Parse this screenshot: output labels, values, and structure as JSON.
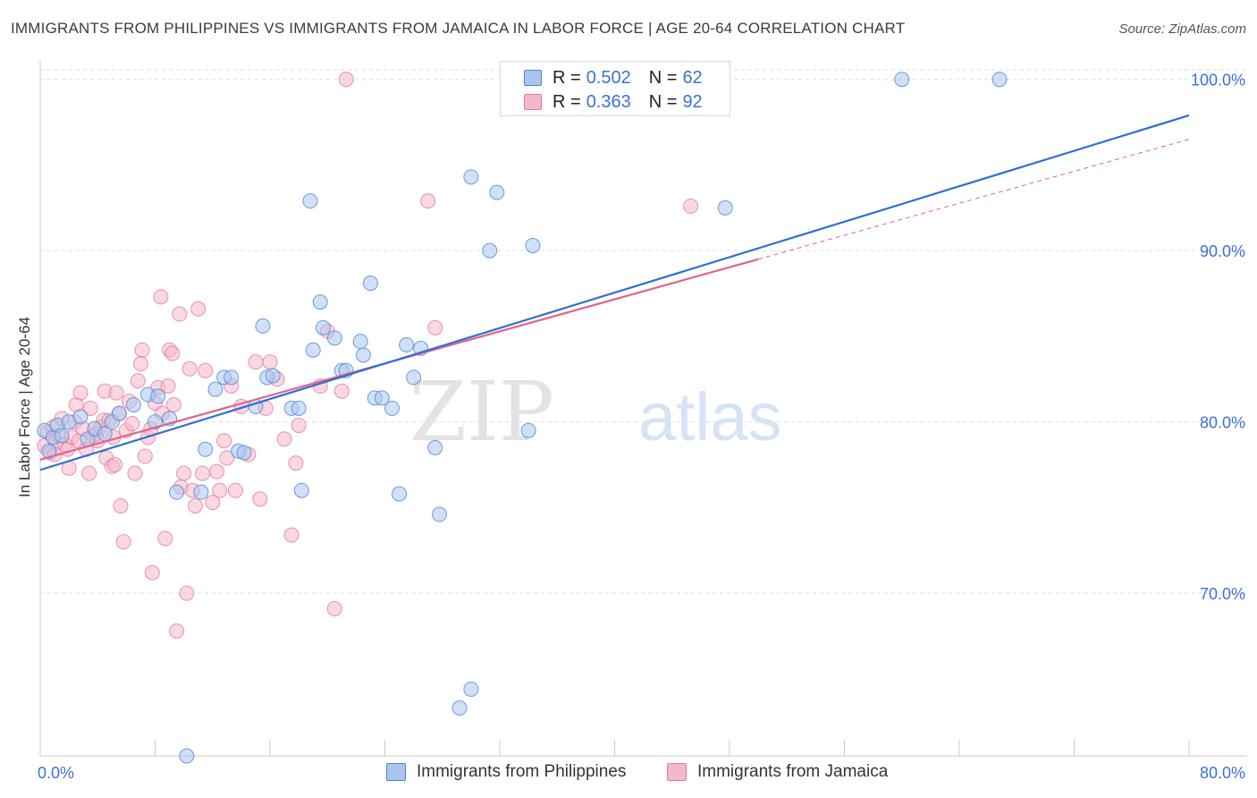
{
  "title": "IMMIGRANTS FROM PHILIPPINES VS IMMIGRANTS FROM JAMAICA IN LABOR FORCE | AGE 20-64 CORRELATION CHART",
  "source": "Source: ZipAtlas.com",
  "watermark": {
    "zip": "ZIP",
    "atlas": "atlas"
  },
  "legend": {
    "r_label": "R =",
    "n_label": "N =",
    "philippines": {
      "r": "0.502",
      "n": "62"
    },
    "jamaica": {
      "r": "0.363",
      "n": "92"
    }
  },
  "colors": {
    "philippines_fill": "#a9c6ee",
    "philippines_stroke": "#4a86d8",
    "philippines_line": "#2f6fd0",
    "jamaica_fill": "#f5b8cb",
    "jamaica_stroke": "#e27a9c",
    "jamaica_line": "#e0648e",
    "tick_label": "#3a72d8",
    "grid": "#dddddd"
  },
  "chart_data": {
    "type": "scatter",
    "title": "IMMIGRANTS FROM PHILIPPINES VS IMMIGRANTS FROM JAMAICA IN LABOR FORCE | AGE 20-64 CORRELATION CHART",
    "xlabel": "",
    "ylabel": "In Labor Force | Age 20-64",
    "xlim": [
      0,
      80
    ],
    "ylim": [
      60.5,
      101.5
    ],
    "x_tick_labels": [
      "0.0%",
      "80.0%"
    ],
    "y_ticks": [
      70,
      80,
      90,
      100
    ],
    "y_tick_labels": [
      "70.0%",
      "80.0%",
      "90.0%",
      "100.0%"
    ],
    "grid": true,
    "legend_position": "top-center",
    "series": [
      {
        "name": "Immigrants from Philippines",
        "r": 0.502,
        "n": 62,
        "trend": {
          "x": [
            0,
            80
          ],
          "y": [
            77.2,
            97.9
          ]
        },
        "points": [
          [
            0.3,
            79.5
          ],
          [
            0.6,
            78.3
          ],
          [
            0.9,
            79.1
          ],
          [
            1.2,
            79.8
          ],
          [
            1.5,
            79.2
          ],
          [
            2.0,
            80.0
          ],
          [
            2.8,
            80.3
          ],
          [
            3.3,
            79.0
          ],
          [
            3.8,
            79.6
          ],
          [
            4.5,
            79.3
          ],
          [
            5.0,
            80.0
          ],
          [
            5.5,
            80.5
          ],
          [
            6.5,
            81.0
          ],
          [
            7.5,
            81.6
          ],
          [
            8.0,
            80.0
          ],
          [
            9.0,
            80.2
          ],
          [
            9.5,
            75.9
          ],
          [
            10.2,
            60.5
          ],
          [
            11.2,
            75.9
          ],
          [
            11.5,
            78.4
          ],
          [
            12.2,
            81.9
          ],
          [
            12.8,
            82.6
          ],
          [
            13.3,
            82.6
          ],
          [
            13.8,
            78.3
          ],
          [
            14.2,
            78.2
          ],
          [
            15.0,
            80.9
          ],
          [
            15.5,
            85.6
          ],
          [
            15.8,
            82.6
          ],
          [
            16.2,
            82.7
          ],
          [
            17.5,
            80.8
          ],
          [
            18.0,
            80.8
          ],
          [
            18.8,
            92.9
          ],
          [
            18.2,
            76.0
          ],
          [
            19.5,
            87.0
          ],
          [
            19.7,
            85.5
          ],
          [
            19.0,
            84.2
          ],
          [
            20.5,
            84.9
          ],
          [
            21.0,
            83.0
          ],
          [
            21.3,
            83.0
          ],
          [
            22.3,
            84.7
          ],
          [
            22.5,
            83.9
          ],
          [
            23.0,
            88.1
          ],
          [
            23.3,
            81.4
          ],
          [
            23.8,
            81.4
          ],
          [
            24.5,
            80.8
          ],
          [
            25.0,
            75.8
          ],
          [
            25.5,
            84.5
          ],
          [
            26.0,
            82.6
          ],
          [
            26.5,
            84.3
          ],
          [
            27.5,
            78.5
          ],
          [
            27.8,
            74.6
          ],
          [
            30.0,
            94.3
          ],
          [
            30.0,
            64.4
          ],
          [
            29.2,
            63.3
          ],
          [
            31.3,
            90.0
          ],
          [
            31.8,
            93.4
          ],
          [
            34.3,
            90.3
          ],
          [
            34.0,
            79.5
          ],
          [
            47.7,
            92.5
          ],
          [
            60.0,
            100.0
          ],
          [
            66.8,
            100.0
          ],
          [
            8.2,
            81.5
          ]
        ]
      },
      {
        "name": "Immigrants from Jamaica",
        "r": 0.363,
        "n": 92,
        "trend": {
          "x": [
            0,
            50
          ],
          "y": [
            77.8,
            89.5
          ]
        },
        "trend_dashed": {
          "x": [
            50,
            80
          ],
          "y": [
            89.5,
            96.5
          ]
        },
        "points": [
          [
            0.3,
            78.6
          ],
          [
            0.5,
            79.4
          ],
          [
            0.7,
            78.2
          ],
          [
            0.9,
            79.7
          ],
          [
            1.1,
            78.8
          ],
          [
            1.3,
            79.2
          ],
          [
            1.5,
            80.2
          ],
          [
            1.7,
            78.7
          ],
          [
            1.9,
            78.4
          ],
          [
            2.0,
            77.3
          ],
          [
            2.2,
            79.1
          ],
          [
            2.4,
            80.0
          ],
          [
            2.5,
            81.0
          ],
          [
            2.7,
            78.9
          ],
          [
            2.8,
            81.7
          ],
          [
            3.0,
            79.6
          ],
          [
            3.2,
            78.4
          ],
          [
            3.4,
            77.0
          ],
          [
            3.5,
            80.8
          ],
          [
            3.7,
            79.2
          ],
          [
            3.9,
            79.3
          ],
          [
            4.0,
            78.9
          ],
          [
            4.2,
            79.7
          ],
          [
            4.4,
            80.1
          ],
          [
            4.5,
            81.8
          ],
          [
            4.6,
            77.9
          ],
          [
            4.8,
            80.1
          ],
          [
            5.0,
            77.4
          ],
          [
            5.1,
            79.1
          ],
          [
            5.3,
            81.7
          ],
          [
            5.5,
            80.5
          ],
          [
            5.6,
            75.1
          ],
          [
            5.8,
            73.0
          ],
          [
            6.0,
            79.5
          ],
          [
            6.2,
            81.2
          ],
          [
            6.4,
            79.9
          ],
          [
            6.6,
            77.0
          ],
          [
            6.8,
            82.4
          ],
          [
            7.0,
            83.4
          ],
          [
            7.1,
            84.2
          ],
          [
            7.3,
            78.0
          ],
          [
            7.5,
            79.1
          ],
          [
            7.7,
            79.6
          ],
          [
            7.8,
            71.2
          ],
          [
            8.0,
            81.1
          ],
          [
            8.2,
            82.0
          ],
          [
            8.4,
            87.3
          ],
          [
            8.5,
            80.5
          ],
          [
            8.7,
            73.2
          ],
          [
            8.9,
            82.1
          ],
          [
            9.0,
            84.2
          ],
          [
            9.2,
            84.0
          ],
          [
            9.3,
            81.0
          ],
          [
            9.5,
            67.8
          ],
          [
            9.7,
            86.3
          ],
          [
            9.8,
            76.2
          ],
          [
            10.0,
            77.0
          ],
          [
            10.2,
            70.0
          ],
          [
            10.4,
            83.1
          ],
          [
            10.6,
            76.0
          ],
          [
            10.8,
            75.1
          ],
          [
            11.0,
            86.6
          ],
          [
            11.3,
            77.0
          ],
          [
            11.5,
            83.0
          ],
          [
            12.0,
            75.3
          ],
          [
            12.3,
            77.1
          ],
          [
            12.5,
            76.0
          ],
          [
            13.0,
            77.9
          ],
          [
            13.3,
            82.1
          ],
          [
            13.6,
            76.0
          ],
          [
            14.0,
            80.9
          ],
          [
            14.5,
            78.1
          ],
          [
            15.0,
            83.5
          ],
          [
            15.3,
            75.5
          ],
          [
            15.7,
            80.8
          ],
          [
            16.0,
            83.5
          ],
          [
            16.5,
            82.5
          ],
          [
            17.0,
            79.0
          ],
          [
            17.5,
            73.4
          ],
          [
            17.8,
            77.6
          ],
          [
            18.0,
            79.8
          ],
          [
            19.5,
            82.1
          ],
          [
            20.0,
            85.3
          ],
          [
            20.5,
            69.1
          ],
          [
            21.0,
            81.8
          ],
          [
            21.3,
            100.0
          ],
          [
            27.0,
            92.9
          ],
          [
            27.5,
            85.5
          ],
          [
            45.3,
            92.6
          ],
          [
            12.8,
            78.9
          ],
          [
            5.2,
            77.5
          ],
          [
            1.0,
            78.1
          ]
        ]
      }
    ]
  },
  "bottom_legend": {
    "philippines": "Immigrants from Philippines",
    "jamaica": "Immigrants from Jamaica"
  }
}
